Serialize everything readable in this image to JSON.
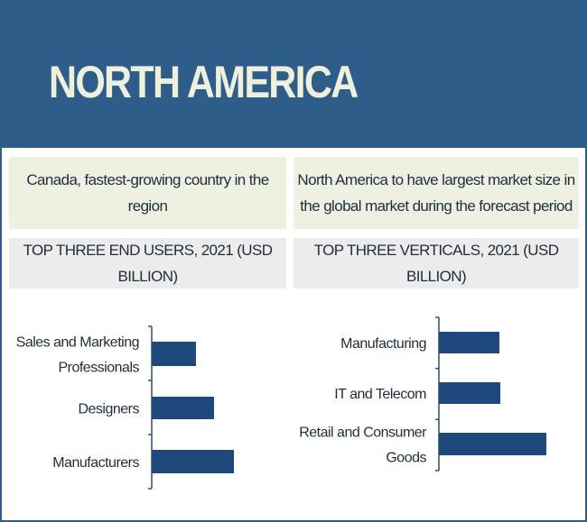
{
  "header": {
    "title": "NORTH AMERICA"
  },
  "highlights": {
    "left": "Canada, fastest-growing country in the region",
    "right": "North America to have largest market size in the global market  during the forecast period"
  },
  "colors": {
    "header": "#2f5d8a",
    "bar": "#1f497d",
    "title": "#eef0dc"
  },
  "chart_data": [
    {
      "type": "bar",
      "orientation": "horizontal",
      "title": "TOP THREE END USERS, 2021 (USD BILLION)",
      "categories": [
        "Sales and Marketing Professionals",
        "Designers",
        "Manufacturers"
      ],
      "values": [
        49,
        69,
        91
      ],
      "xlabel": "",
      "ylabel": "",
      "note": "relative values, no axis shown"
    },
    {
      "type": "bar",
      "orientation": "horizontal",
      "title": "TOP THREE VERTICALS, 2021 (USD BILLION)",
      "categories": [
        "Manufacturing",
        "IT and Telecom",
        "Retail and Consumer Goods"
      ],
      "values": [
        67,
        68,
        119
      ],
      "xlabel": "",
      "ylabel": "",
      "note": "relative values, no axis shown"
    }
  ]
}
